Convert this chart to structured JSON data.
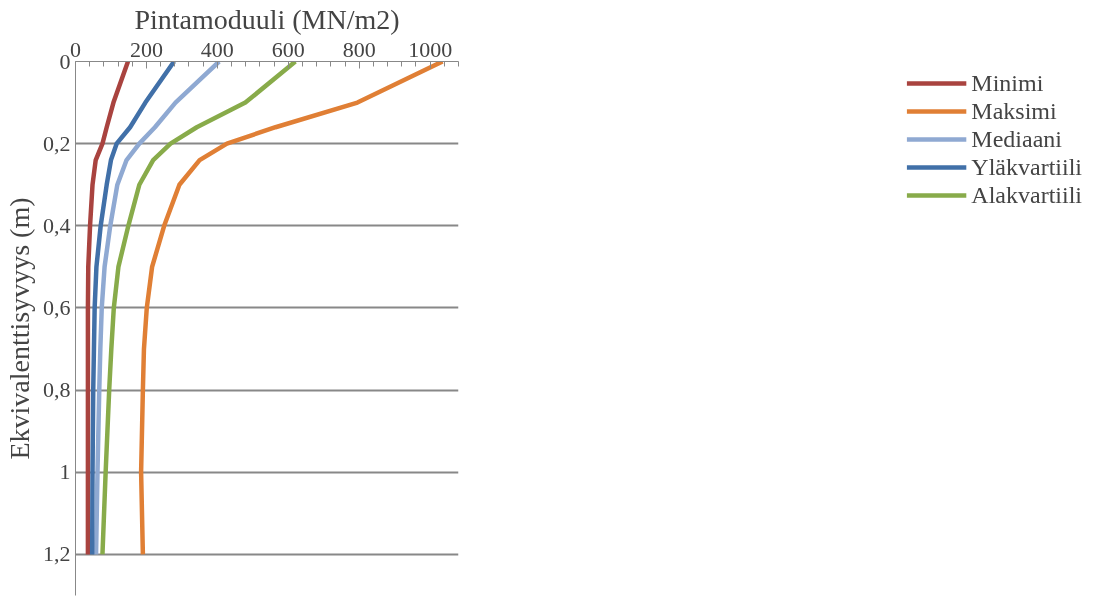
{
  "chart_data": {
    "type": "line",
    "xlabel": "Pintamoduuli (MN/m2)",
    "ylabel": "Ekvivalenttisyvyys (m)",
    "xlim": [
      0,
      1080
    ],
    "xticks": [
      0,
      200,
      400,
      600,
      800,
      1000
    ],
    "ylim": [
      1.3,
      0
    ],
    "yticks": [
      0,
      {
        "value": 0.2,
        "label": "0,2"
      },
      {
        "value": 0.4,
        "label": "0,4"
      },
      {
        "value": 0.6,
        "label": "0,6"
      },
      {
        "value": 0.8,
        "label": "0,8"
      },
      1,
      {
        "value": 1.2,
        "label": "1,2"
      }
    ],
    "grid": "y",
    "legend": "right",
    "marker": "none",
    "line_style": "solid",
    "series": [
      {
        "name": "Minimi",
        "color": "#a9433f",
        "x": [
          148,
          107,
          88,
          76,
          57,
          48,
          41,
          36,
          35,
          35,
          35,
          35,
          35
        ],
        "values": [
          0,
          0.1,
          0.16,
          0.2,
          0.24,
          0.3,
          0.4,
          0.5,
          0.6,
          0.7,
          0.8,
          1.0,
          1.2
        ]
      },
      {
        "name": "Maksimi",
        "color": "#e07f35",
        "x": [
          1035,
          795,
          564,
          427,
          350,
          293,
          250,
          216,
          201,
          193,
          190,
          185,
          190
        ],
        "values": [
          0,
          0.1,
          0.16,
          0.2,
          0.24,
          0.3,
          0.4,
          0.5,
          0.6,
          0.7,
          0.8,
          1.0,
          1.2
        ]
      },
      {
        "name": "Mediaani",
        "color": "#8fa9d2",
        "x": [
          405,
          282,
          224,
          180,
          144,
          118,
          98,
          82,
          74,
          70,
          67,
          62,
          58
        ],
        "values": [
          0,
          0.1,
          0.16,
          0.2,
          0.24,
          0.3,
          0.4,
          0.5,
          0.6,
          0.7,
          0.8,
          1.0,
          1.2
        ]
      },
      {
        "name": "Yläkvartiili",
        "color": "#4170a8",
        "x": [
          278,
          197,
          154,
          116,
          100,
          88,
          71,
          59,
          54,
          52,
          50,
          48,
          47
        ],
        "values": [
          0,
          0.1,
          0.16,
          0.2,
          0.24,
          0.3,
          0.4,
          0.5,
          0.6,
          0.7,
          0.8,
          1.0,
          1.2
        ]
      },
      {
        "name": "Alakvartiili",
        "color": "#88ab4a",
        "x": [
          620,
          479,
          342,
          268,
          219,
          180,
          149,
          121,
          108,
          101,
          95,
          85,
          76
        ],
        "values": [
          0,
          0.1,
          0.16,
          0.2,
          0.24,
          0.3,
          0.4,
          0.5,
          0.6,
          0.7,
          0.8,
          1.0,
          1.2
        ]
      }
    ]
  }
}
